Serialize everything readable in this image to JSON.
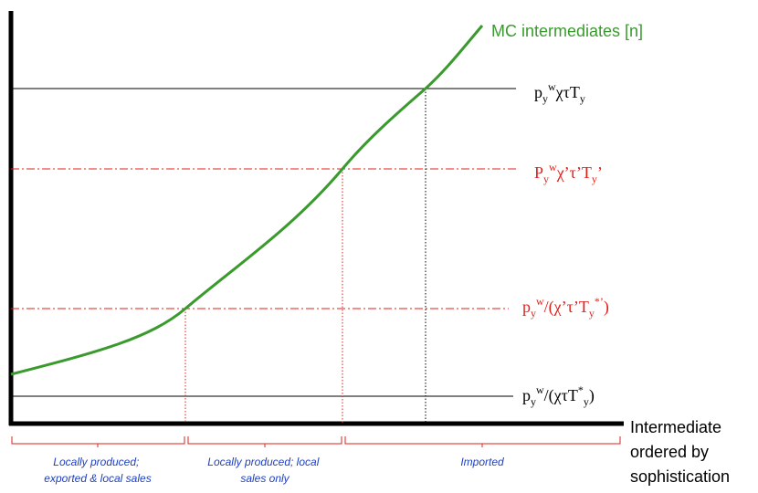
{
  "colors": {
    "curve": "#3a9a2e",
    "red": "#e0201b",
    "black": "#000000",
    "region_text": "#1f3fbf"
  },
  "curve_label": "MC intermediates [n]",
  "x_axis_label": [
    "Intermediate",
    "ordered by",
    "sophistication"
  ],
  "thresholds": [
    {
      "name": "threshold-1",
      "base": "p",
      "sub1": "y",
      "sup1": "w",
      "rest": "χτT",
      "sub2": "y",
      "sup2": ""
    },
    {
      "name": "threshold-2",
      "base": "P",
      "sub1": "y",
      "sup1": "w",
      "rest": "χ’τ’T",
      "sub2": "y",
      "sup2": "",
      "tail": "’"
    },
    {
      "name": "threshold-3",
      "base": "p",
      "sub1": "y",
      "sup1": "w",
      "rest": "/(χ’τ’T",
      "sub2": "y",
      "sup2": "*’",
      "tail": ")"
    },
    {
      "name": "threshold-4",
      "base": "p",
      "sub1": "y",
      "sup1": "w",
      "rest": "/(χτT",
      "sub2": "y",
      "sup2": "*",
      "tail": ")"
    }
  ],
  "regions": [
    {
      "lines": [
        "Locally produced;",
        "exported & local sales"
      ]
    },
    {
      "lines": [
        "Locally produced; local",
        "sales only"
      ]
    },
    {
      "lines": [
        "Imported"
      ]
    }
  ]
}
